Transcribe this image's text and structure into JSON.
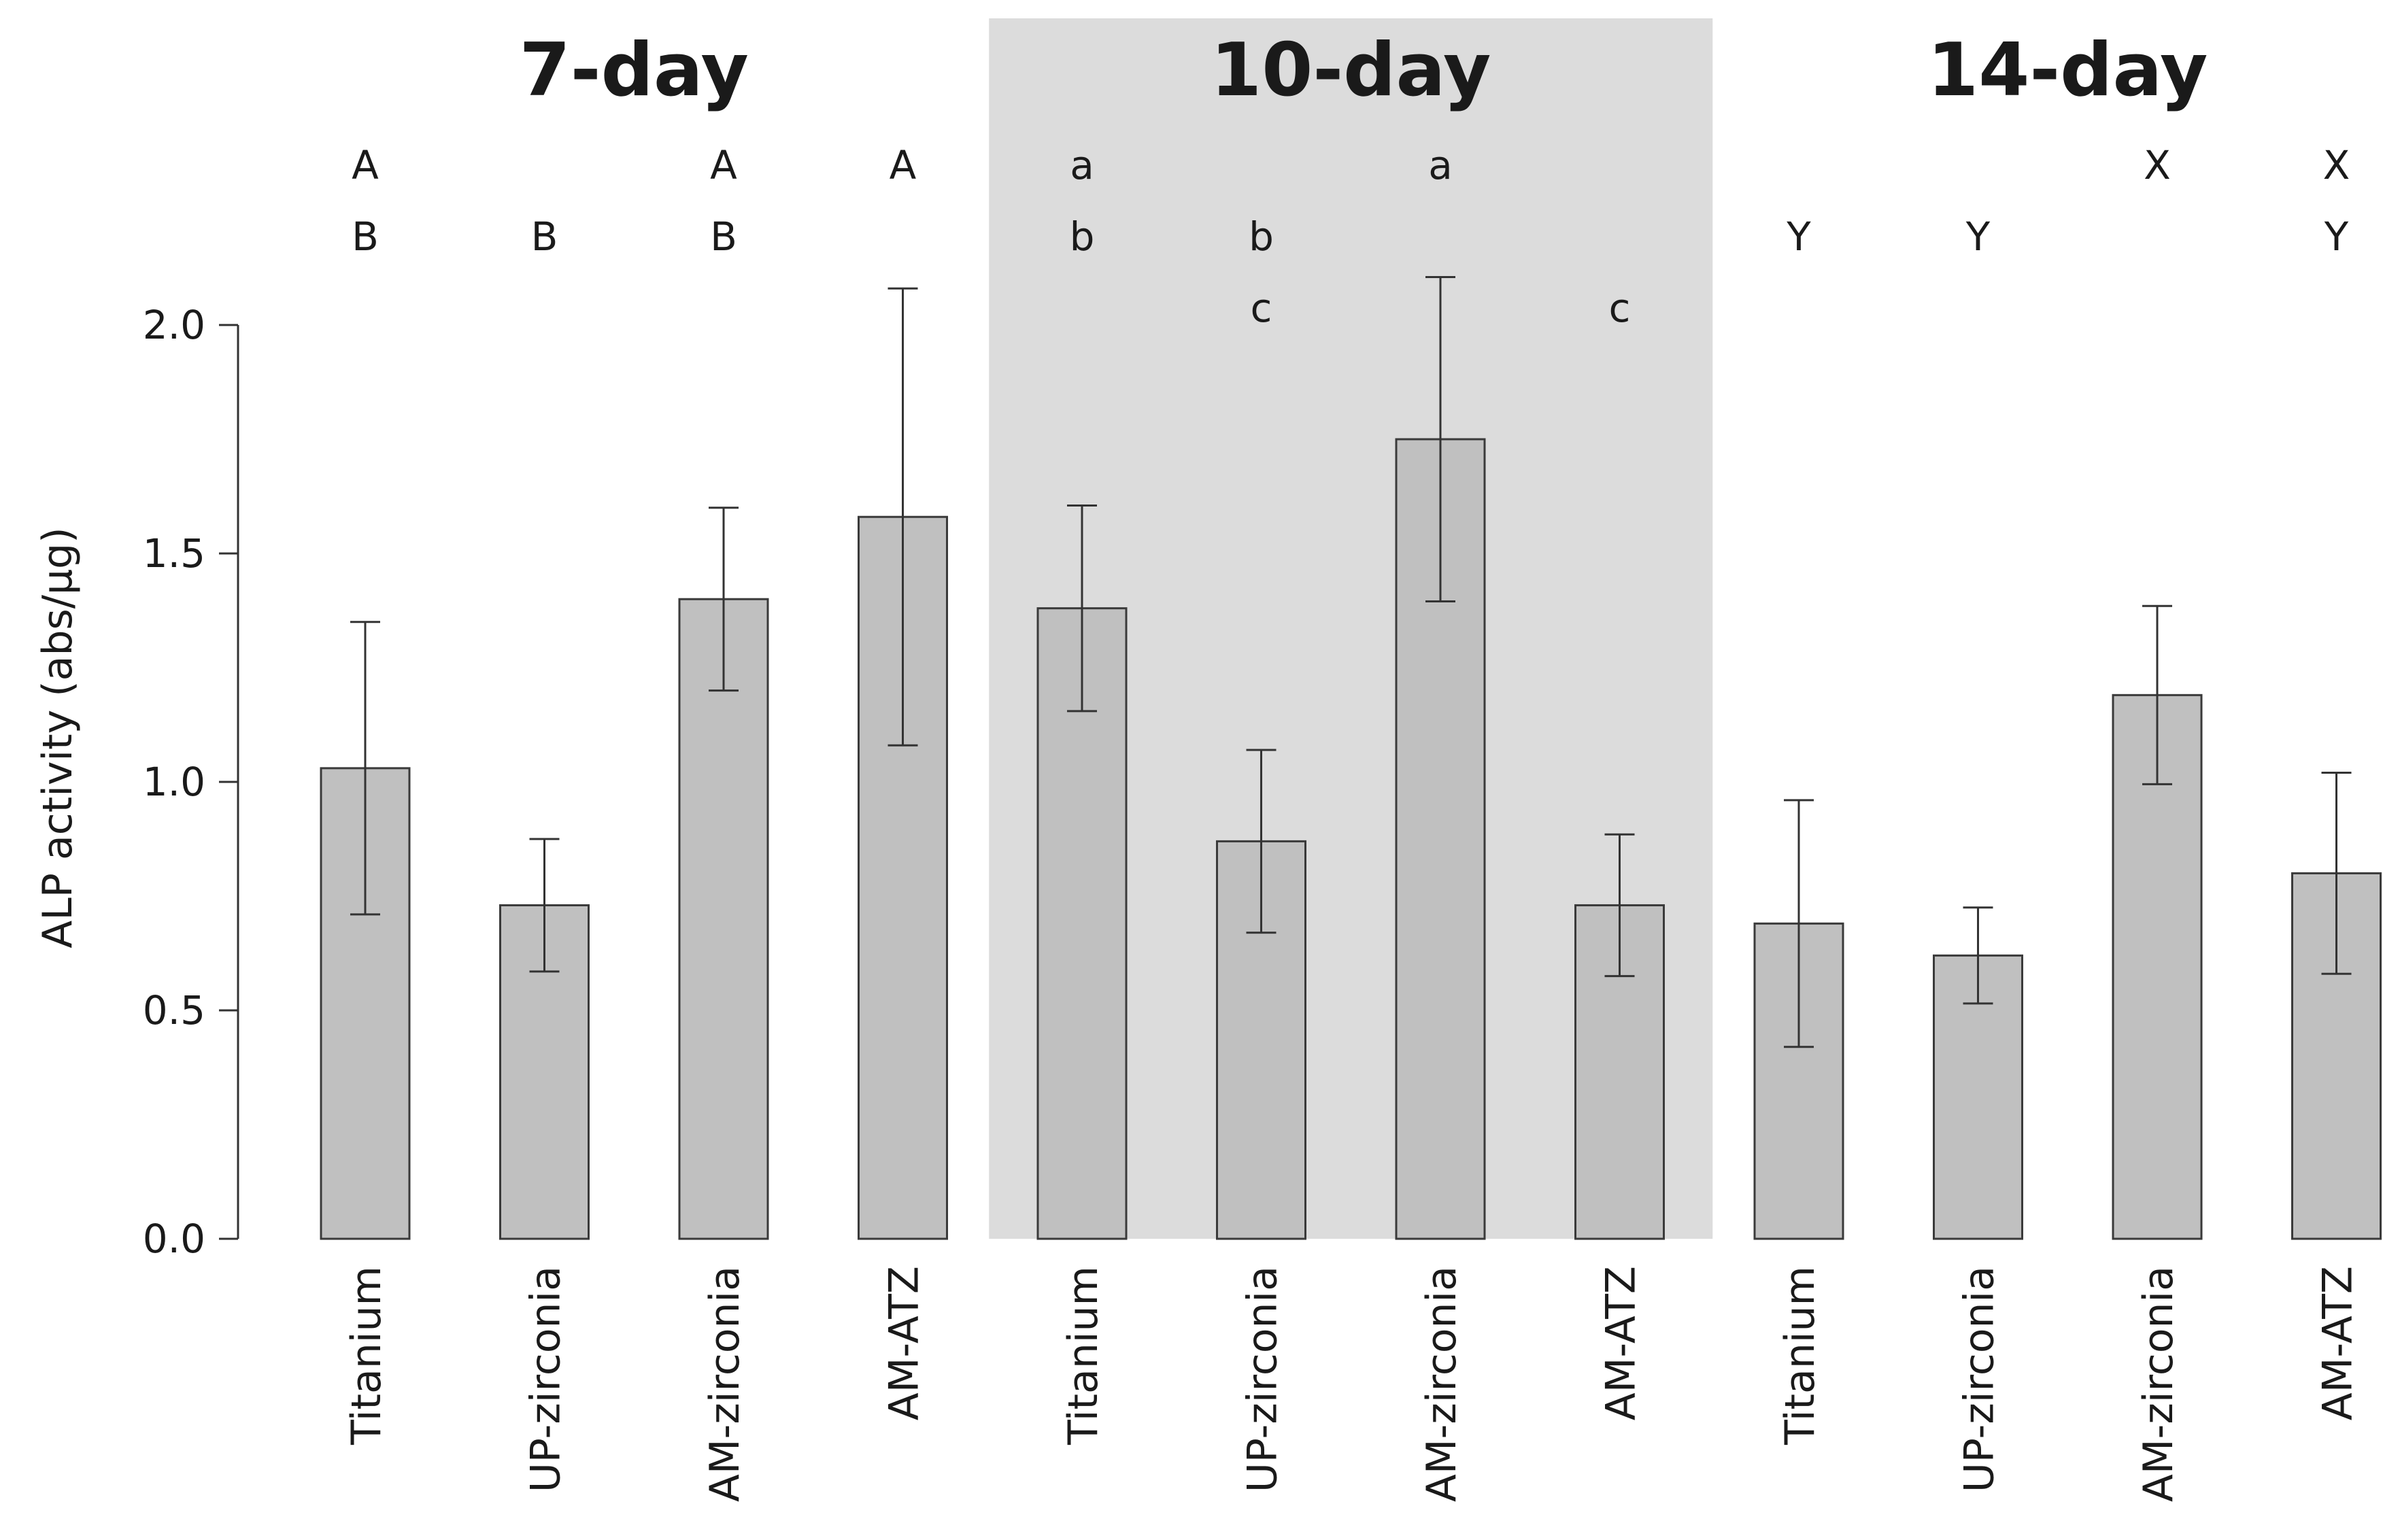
{
  "chart_data": {
    "type": "bar",
    "title": "",
    "xlabel": "",
    "ylabel": "ALP activity (abs/µg)",
    "ylim": [
      0,
      2.0
    ],
    "yticks": [
      "0.0",
      "0.5",
      "1.0",
      "1.5",
      "2.0"
    ],
    "ytick_values": [
      0,
      0.5,
      1.0,
      1.5,
      2.0
    ],
    "grid": false,
    "bar_color": "#c0c0c0",
    "highlight_color": "#dcdcdc",
    "groups": [
      {
        "title": "7-day",
        "shaded": false,
        "categories": [
          "Titanium",
          "UP-zirconia",
          "AM-zirconia",
          "AM-ATZ"
        ],
        "values": [
          1.03,
          0.73,
          1.4,
          1.58
        ],
        "errors": [
          0.32,
          0.145,
          0.2,
          0.5
        ],
        "letters": [
          [
            "A",
            "B"
          ],
          [
            "",
            "B"
          ],
          [
            "A",
            "B"
          ],
          [
            "A",
            ""
          ]
        ]
      },
      {
        "title": "10-day",
        "shaded": true,
        "categories": [
          "Titanium",
          "UP-zirconia",
          "AM-zirconia",
          "AM-ATZ"
        ],
        "values": [
          1.38,
          0.87,
          1.75,
          0.73
        ],
        "errors": [
          0.225,
          0.2,
          0.355,
          0.155
        ],
        "letters": [
          [
            "a",
            "b",
            ""
          ],
          [
            "",
            "b",
            "c"
          ],
          [
            "a",
            "",
            ""
          ],
          [
            "",
            "",
            "c"
          ]
        ]
      },
      {
        "title": "14-day",
        "shaded": false,
        "categories": [
          "Titanium",
          "UP-zirconia",
          "AM-zirconia",
          "AM-ATZ"
        ],
        "values": [
          0.69,
          0.62,
          1.19,
          0.8
        ],
        "errors": [
          0.27,
          0.105,
          0.195,
          0.22
        ],
        "letters": [
          [
            "",
            "Y"
          ],
          [
            "",
            "Y"
          ],
          [
            "X",
            ""
          ],
          [
            "X",
            "Y"
          ]
        ]
      }
    ]
  }
}
